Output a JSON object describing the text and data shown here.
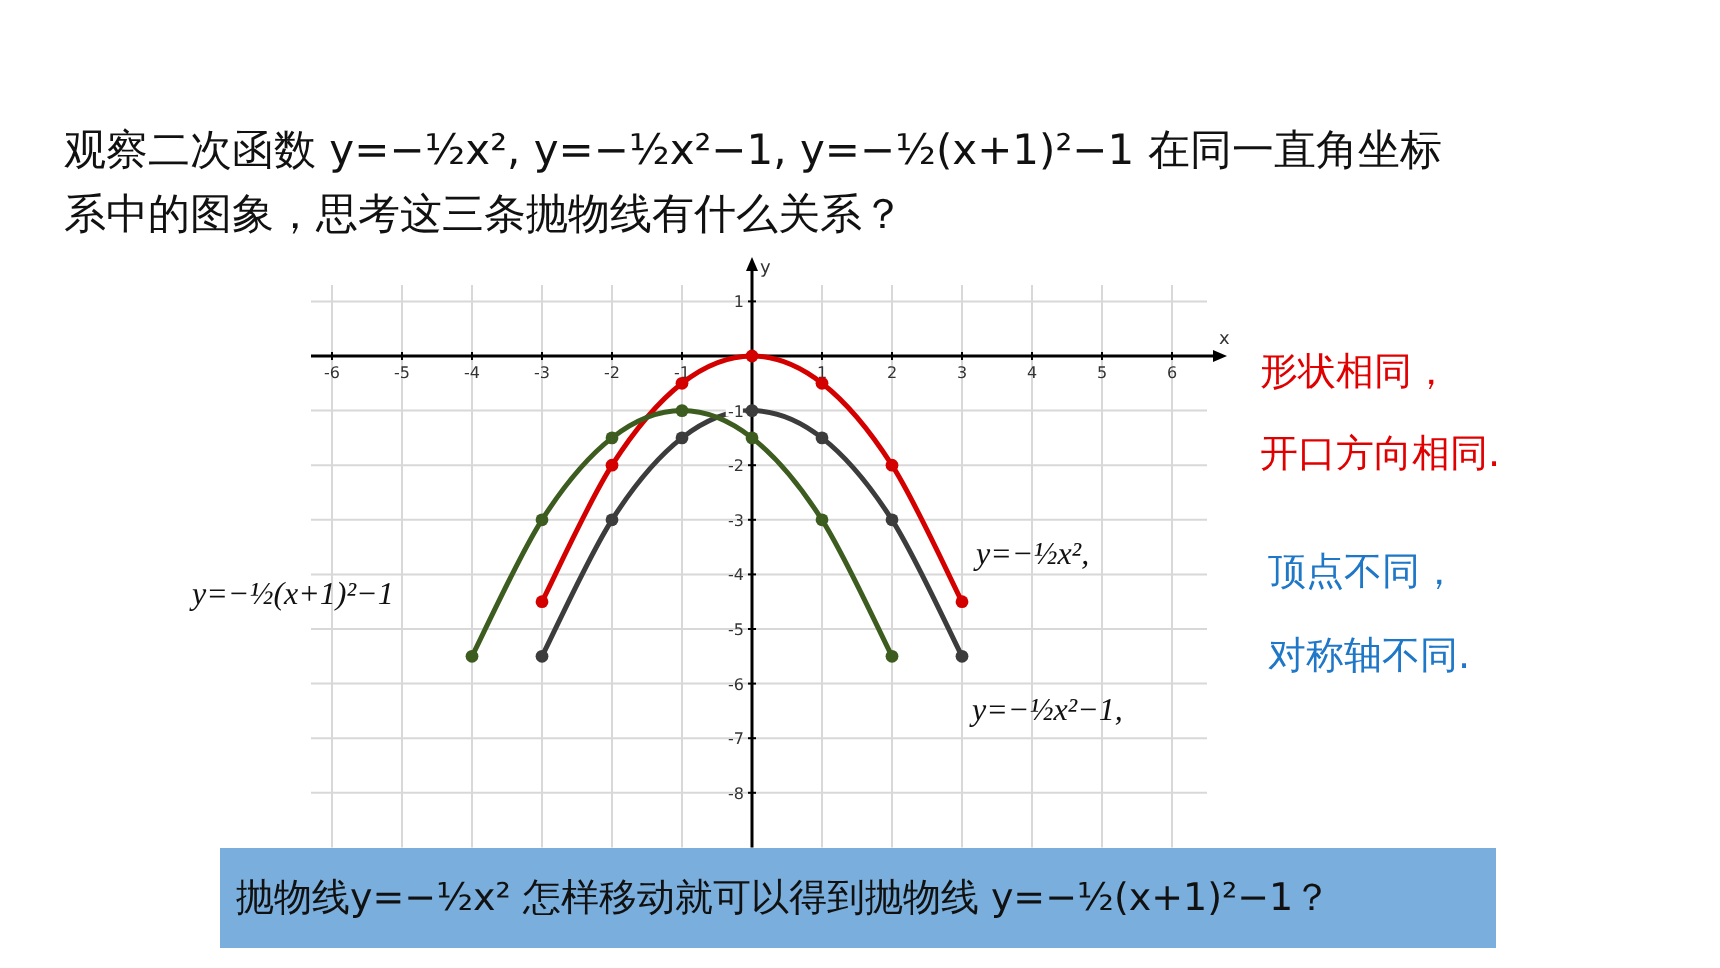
{
  "chart_data": {
    "type": "line",
    "title": "观察二次函数 y=−½x², y=−½x²−1, y=−½(x+1)²−1 在同一直角坐标系中的图象，思考这三条抛物线有什么关系？",
    "xlabel": "x",
    "ylabel": "y",
    "xlim": [
      -6.3,
      6.5
    ],
    "ylim": [
      -9,
      1.3
    ],
    "xticks": [
      -6,
      -5,
      -4,
      -3,
      -2,
      -1,
      1,
      2,
      3,
      4,
      5,
      6
    ],
    "yticks": [
      1,
      -1,
      -2,
      -3,
      -4,
      -5,
      -6,
      -7,
      -8
    ],
    "grid": true,
    "marker": "circle",
    "series": [
      {
        "name": "y=−½x²,",
        "color": "#d40000",
        "x": [
          -3,
          -2,
          -1,
          0,
          1,
          2,
          3
        ],
        "values": [
          -4.5,
          -2,
          -0.5,
          0,
          -0.5,
          -2,
          -4.5
        ]
      },
      {
        "name": "y=−½x²−1,",
        "color": "#3c3c3c",
        "x": [
          -3,
          -2,
          -1,
          0,
          1,
          2,
          3
        ],
        "values": [
          -5.5,
          -3,
          -1.5,
          -1,
          -1.5,
          -3,
          -5.5
        ]
      },
      {
        "name": "y=−½(x+1)²−1",
        "color": "#3d5c1f",
        "x": [
          -4,
          -3,
          -2,
          -1,
          0,
          1,
          2
        ],
        "values": [
          -5.5,
          -3,
          -1.5,
          -1,
          -1.5,
          -3,
          -5.5
        ]
      }
    ],
    "annotations": [
      "形状相同，",
      "开口方向相同.",
      "顶点不同，",
      "对称轴不同.",
      "抛物线y=−½x² 怎样移动就可以得到抛物线 y=−½(x+1)²−1？"
    ]
  }
}
